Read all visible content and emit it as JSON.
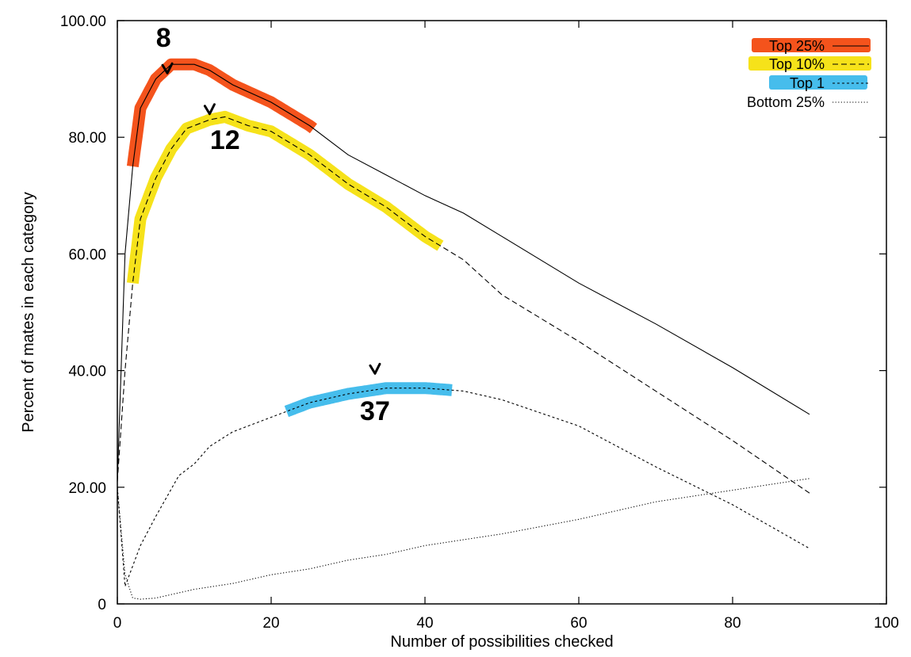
{
  "chart_data": {
    "type": "line",
    "title": "",
    "xlabel": "Number of possibilities checked",
    "ylabel": "Percent of mates in each category",
    "xlim": [
      0,
      100
    ],
    "ylim": [
      0,
      100
    ],
    "x_ticks": [
      "0",
      "20",
      "40",
      "60",
      "80",
      "100"
    ],
    "y_ticks": [
      "0",
      "20.00",
      "40.00",
      "60.00",
      "80.00",
      "100.00"
    ],
    "grid": false,
    "legend_position": "top-right",
    "series": [
      {
        "name": "Top 25%",
        "style": "solid",
        "points": [
          [
            0,
            21
          ],
          [
            1,
            60
          ],
          [
            2,
            75
          ],
          [
            3,
            85
          ],
          [
            5,
            90
          ],
          [
            7,
            92.5
          ],
          [
            10,
            92.5
          ],
          [
            12,
            91.5
          ],
          [
            15,
            89
          ],
          [
            20,
            86
          ],
          [
            25,
            82
          ],
          [
            30,
            77
          ],
          [
            35,
            73.5
          ],
          [
            40,
            70
          ],
          [
            45,
            67
          ],
          [
            50,
            63
          ],
          [
            60,
            55
          ],
          [
            70,
            48
          ],
          [
            80,
            40.5
          ],
          [
            90,
            32.5
          ]
        ]
      },
      {
        "name": "Top 10%",
        "style": "dashed",
        "points": [
          [
            0,
            21
          ],
          [
            1,
            40
          ],
          [
            2,
            55
          ],
          [
            3,
            66
          ],
          [
            5,
            73
          ],
          [
            7,
            78
          ],
          [
            9,
            81.5
          ],
          [
            12,
            83
          ],
          [
            14,
            83.5
          ],
          [
            17,
            82
          ],
          [
            20,
            81
          ],
          [
            25,
            77
          ],
          [
            30,
            72
          ],
          [
            35,
            68
          ],
          [
            40,
            63
          ],
          [
            45,
            59
          ],
          [
            50,
            53
          ],
          [
            60,
            45
          ],
          [
            70,
            36.5
          ],
          [
            80,
            28
          ],
          [
            90,
            19
          ]
        ]
      },
      {
        "name": "Top 1",
        "style": "short-dashed",
        "points": [
          [
            0,
            20
          ],
          [
            1,
            3
          ],
          [
            3,
            10
          ],
          [
            5,
            15
          ],
          [
            8,
            22
          ],
          [
            10,
            24
          ],
          [
            12,
            27
          ],
          [
            15,
            29.5
          ],
          [
            20,
            32
          ],
          [
            25,
            34.5
          ],
          [
            30,
            36
          ],
          [
            35,
            37
          ],
          [
            40,
            37
          ],
          [
            45,
            36.5
          ],
          [
            50,
            35
          ],
          [
            60,
            30.5
          ],
          [
            70,
            23.5
          ],
          [
            80,
            17
          ],
          [
            90,
            9.5
          ]
        ]
      },
      {
        "name": "Bottom 25%",
        "style": "dotted",
        "points": [
          [
            0,
            20
          ],
          [
            1,
            5
          ],
          [
            2,
            1
          ],
          [
            3,
            0.8
          ],
          [
            5,
            1
          ],
          [
            10,
            2.5
          ],
          [
            15,
            3.5
          ],
          [
            20,
            5
          ],
          [
            25,
            6
          ],
          [
            30,
            7.5
          ],
          [
            35,
            8.5
          ],
          [
            40,
            10
          ],
          [
            45,
            11
          ],
          [
            50,
            12
          ],
          [
            60,
            14.5
          ],
          [
            70,
            17.5
          ],
          [
            80,
            19.5
          ],
          [
            90,
            21.5
          ]
        ]
      }
    ],
    "highlights": [
      {
        "series": "Top 25%",
        "color": "#f4531c",
        "x_range": [
          2,
          25.5
        ],
        "legend_band": true
      },
      {
        "series": "Top 10%",
        "color": "#f6e21a",
        "x_range": [
          2,
          42
        ],
        "legend_band": true
      },
      {
        "series": "Top 1",
        "color": "#46bdec",
        "x_range": [
          22,
          43.5
        ],
        "legend_band": true
      }
    ],
    "annotations": [
      {
        "text": "8",
        "x": 6,
        "y": 95.5
      },
      {
        "text": "12",
        "x": 14,
        "y": 78
      },
      {
        "text": "37",
        "x": 33.5,
        "y": 31.5
      }
    ]
  }
}
